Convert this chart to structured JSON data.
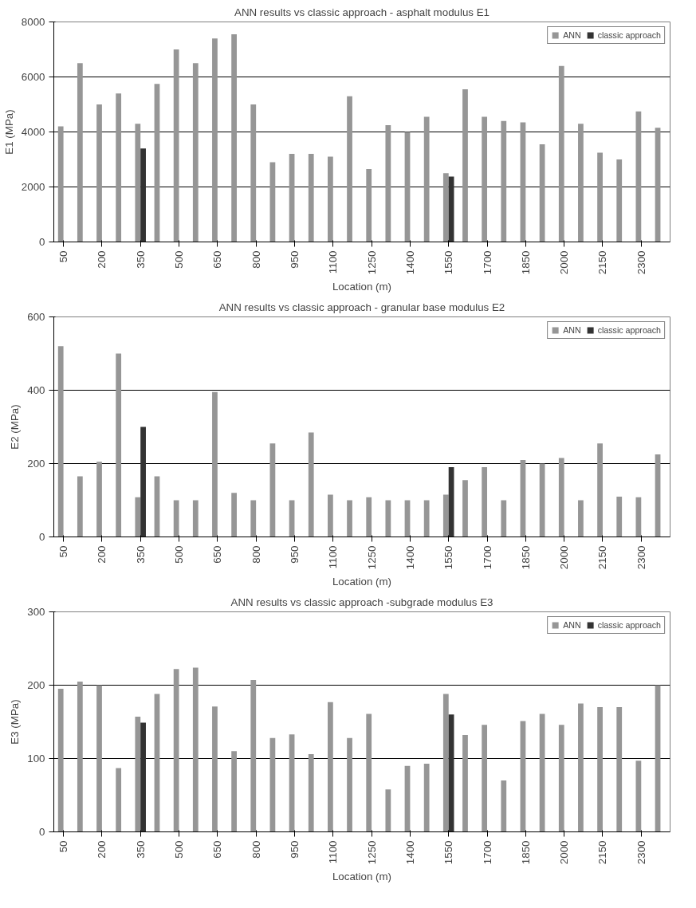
{
  "chart_data": [
    {
      "type": "bar",
      "title": "ANN results vs classic approach - asphalt modulus E1",
      "xlabel": "Location (m)",
      "ylabel": "E1 (MPa)",
      "categories": [
        "50",
        null,
        "200",
        null,
        "350",
        null,
        "500",
        null,
        "650",
        null,
        "800",
        null,
        "950",
        null,
        "1100",
        null,
        "1250",
        null,
        "1400",
        null,
        "1550",
        null,
        "1700",
        null,
        "1850",
        null,
        "2000",
        null,
        "2150",
        null,
        "2300",
        null
      ],
      "series": [
        {
          "name": "ANN",
          "color": "#969696",
          "values": [
            4200,
            6500,
            5000,
            5400,
            4300,
            5750,
            7000,
            6500,
            7400,
            7550,
            5000,
            2900,
            3200,
            3200,
            3100,
            5300,
            2650,
            4250,
            4000,
            4550,
            2500,
            5550,
            4550,
            4400,
            4350,
            3550,
            6400,
            4300,
            3250,
            3000,
            4750,
            4150
          ]
        },
        {
          "name": "classic approach",
          "color": "#333333",
          "values": [
            null,
            null,
            null,
            null,
            3400,
            null,
            null,
            null,
            null,
            null,
            null,
            null,
            null,
            null,
            null,
            null,
            null,
            null,
            null,
            null,
            2380,
            null,
            null,
            null,
            null,
            null,
            null,
            null,
            null,
            null,
            null,
            null
          ]
        }
      ],
      "ylim": [
        0,
        8000
      ],
      "yticks": [
        0,
        2000,
        4000,
        6000,
        8000
      ],
      "grid": "y",
      "legend": "top right"
    },
    {
      "type": "bar",
      "title": "ANN results vs classic approach - granular base modulus E2",
      "xlabel": "Location (m)",
      "ylabel": "E2 (MPa)",
      "categories": [
        "50",
        null,
        "200",
        null,
        "350",
        null,
        "500",
        null,
        "650",
        null,
        "800",
        null,
        "950",
        null,
        "1100",
        null,
        "1250",
        null,
        "1400",
        null,
        "1550",
        null,
        "1700",
        null,
        "1850",
        null,
        "2000",
        null,
        "2150",
        null,
        "2300",
        null
      ],
      "series": [
        {
          "name": "ANN",
          "color": "#969696",
          "values": [
            520,
            165,
            205,
            500,
            108,
            165,
            100,
            100,
            395,
            120,
            100,
            255,
            100,
            285,
            115,
            100,
            108,
            100,
            100,
            100,
            115,
            155,
            190,
            100,
            210,
            200,
            215,
            100,
            255,
            110,
            108,
            225
          ]
        },
        {
          "name": "classic approach",
          "color": "#333333",
          "values": [
            null,
            null,
            null,
            null,
            300,
            null,
            null,
            null,
            null,
            null,
            null,
            null,
            null,
            null,
            null,
            null,
            null,
            null,
            null,
            null,
            190,
            null,
            null,
            null,
            null,
            null,
            null,
            null,
            null,
            null,
            null,
            null
          ]
        }
      ],
      "ylim": [
        0,
        600
      ],
      "yticks": [
        0,
        200,
        400,
        600
      ],
      "grid": "y",
      "legend": "top right"
    },
    {
      "type": "bar",
      "title": "ANN results vs classic approach -subgrade modulus E3",
      "xlabel": "Location (m)",
      "ylabel": "E3 (MPa)",
      "categories": [
        "50",
        null,
        "200",
        null,
        "350",
        null,
        "500",
        null,
        "650",
        null,
        "800",
        null,
        "950",
        null,
        "1100",
        null,
        "1250",
        null,
        "1400",
        null,
        "1550",
        null,
        "1700",
        null,
        "1850",
        null,
        "2000",
        null,
        "2150",
        null,
        "2300",
        null
      ],
      "series": [
        {
          "name": "ANN",
          "color": "#969696",
          "values": [
            195,
            205,
            200,
            87,
            157,
            188,
            222,
            224,
            171,
            110,
            207,
            128,
            133,
            106,
            177,
            128,
            161,
            58,
            90,
            93,
            188,
            132,
            146,
            70,
            151,
            161,
            146,
            175,
            170,
            170,
            97,
            200
          ]
        },
        {
          "name": "classic approach",
          "color": "#333333",
          "values": [
            null,
            null,
            null,
            null,
            149,
            null,
            null,
            null,
            null,
            null,
            null,
            null,
            null,
            null,
            null,
            null,
            null,
            null,
            null,
            null,
            160,
            null,
            null,
            null,
            null,
            null,
            null,
            null,
            null,
            null,
            null,
            null
          ]
        }
      ],
      "ylim": [
        0,
        300
      ],
      "yticks": [
        0,
        100,
        200,
        300
      ],
      "grid": "y",
      "legend": "top right"
    }
  ]
}
